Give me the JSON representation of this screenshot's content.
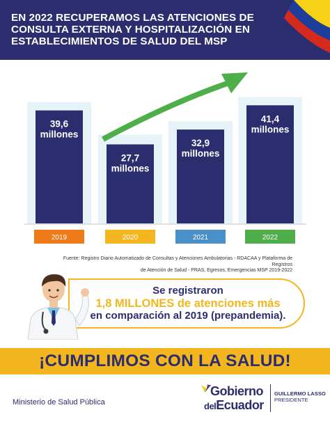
{
  "header": {
    "title_lines": [
      "EN 2022 RECUPERAMOS LAS ATENCIONES DE",
      "CONSULTA EXTERNA Y HOSPITALIZACIÓN EN",
      "ESTABLECIMIENTOS DE SALUD DEL MSP"
    ]
  },
  "chart_data": {
    "type": "bar",
    "categories": [
      "2019",
      "2020",
      "2021",
      "2022"
    ],
    "values": [
      39.6,
      27.7,
      32.9,
      41.4
    ],
    "value_labels": [
      "39,6",
      "27,7",
      "32,9",
      "41,4"
    ],
    "unit_label": "millones",
    "category_colors": [
      "#ee7a1a",
      "#f3b61f",
      "#4a90c8",
      "#4eae4a"
    ],
    "bar_color": "#2b2d6e",
    "frame_color": "#e6f3f8",
    "trend_arrow_color": "#4eae4a",
    "ylim": [
      0,
      45
    ],
    "grid": false,
    "legend": "none"
  },
  "source": {
    "lines": [
      "Fuente: Registro Diario Automatizado de Consultas y Atenciones Ambulatorias - RDACAA y Plataforma de Registros",
      "de Atención de Salud - PRAS, Egresos, Emergencias MSP 2019-2022"
    ]
  },
  "callout": {
    "line1": "Se registraron",
    "line2": "1,8 MILLONES de atenciones más",
    "line3": "en comparación al 2019 (prepandemia)."
  },
  "banner": {
    "text": "¡CUMPLIMOS CON LA SALUD!"
  },
  "footer": {
    "ministry": "Ministerio de Salud Pública",
    "logo_line1": "Gobierno",
    "logo_line2_prefix": "del",
    "logo_line2": "Ecuador",
    "president_name": "GUILLERMO LASSO",
    "president_role": "PRESIDENTE"
  },
  "colors": {
    "navy": "#2b2d6e",
    "yellow": "#f3b61f",
    "flag_yellow": "#f7d117",
    "flag_blue": "#1e3f99",
    "flag_red": "#d52b1e"
  }
}
